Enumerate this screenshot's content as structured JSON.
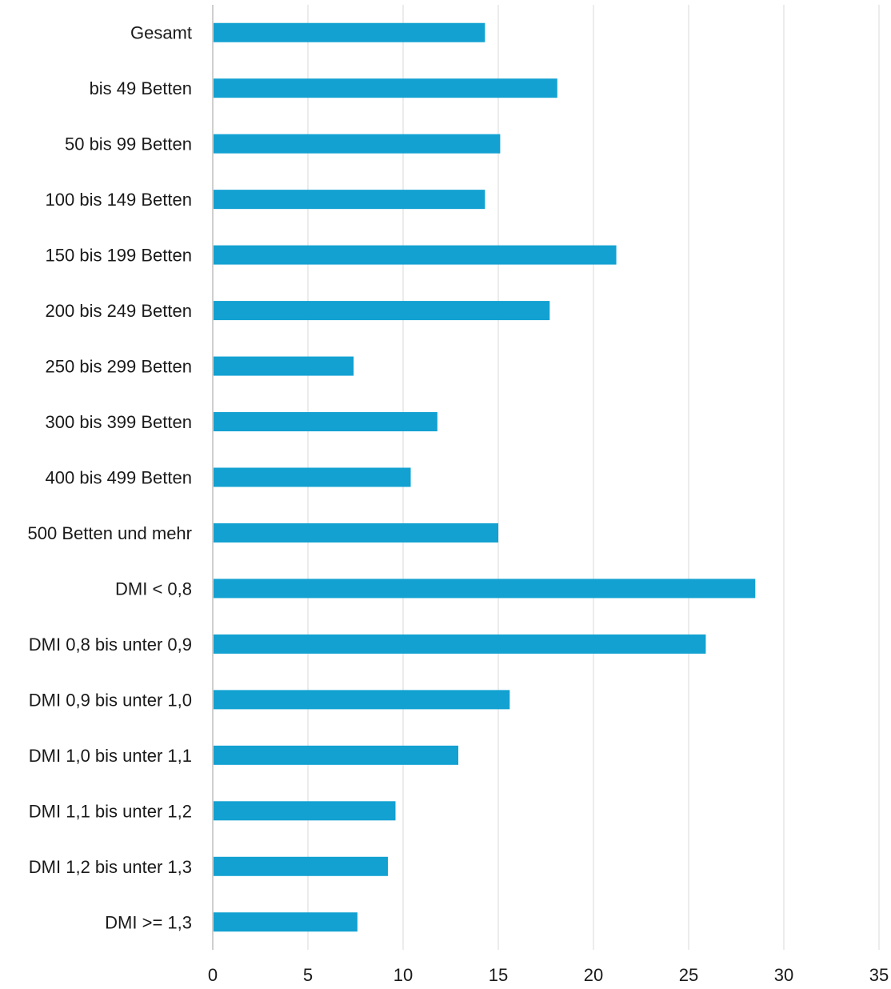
{
  "chart_data": {
    "type": "bar",
    "orientation": "horizontal",
    "categories": [
      "Gesamt",
      "bis 49 Betten",
      "50 bis 99 Betten",
      "100 bis 149 Betten",
      "150 bis 199 Betten",
      "200 bis 249 Betten",
      "250 bis 299 Betten",
      "300 bis 399 Betten",
      "400 bis 499 Betten",
      "500 Betten und mehr",
      "DMI < 0,8",
      "DMI 0,8 bis unter 0,9",
      "DMI 0,9 bis unter 1,0",
      "DMI 1,0 bis unter 1,1",
      "DMI 1,1 bis unter 1,2",
      "DMI 1,2 bis unter 1,3",
      "DMI >= 1,3"
    ],
    "values": [
      14.3,
      18.1,
      15.1,
      14.3,
      21.2,
      17.7,
      7.4,
      11.8,
      10.4,
      15.0,
      28.5,
      25.9,
      15.6,
      12.9,
      9.6,
      9.2,
      7.6
    ],
    "xlim": [
      0,
      35
    ],
    "xticks": [
      "0",
      "5",
      "10",
      "15",
      "20",
      "25",
      "30",
      "35"
    ],
    "title": "",
    "xlabel": "",
    "ylabel": "",
    "grid": "vertical",
    "legend": "none",
    "bar_color": "#12a1d1",
    "grid_color": "#d9d9d9",
    "axis_color": "#bfbfbf"
  }
}
